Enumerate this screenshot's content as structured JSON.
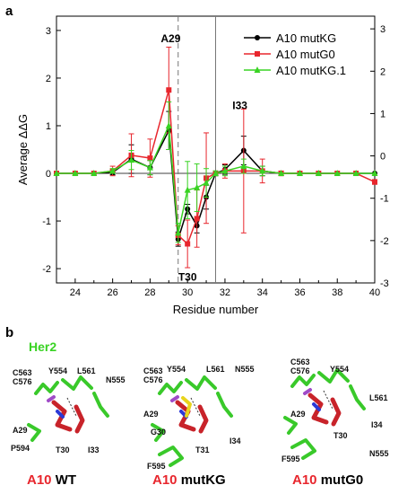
{
  "panel_a_label": "a",
  "panel_b_label": "b",
  "chart_data": {
    "type": "line",
    "ylabel": "Average ΔΔG",
    "xlabel": "Residue number",
    "xlim": [
      23,
      40
    ],
    "ylim": [
      -2.3,
      3.3
    ],
    "right_ylim": [
      -3,
      3.3
    ],
    "xticks": [
      24,
      26,
      28,
      30,
      32,
      34,
      36,
      38,
      40
    ],
    "yticks": [
      -2,
      -1,
      0,
      1,
      2,
      3
    ],
    "right_yticks": [
      -3,
      -2,
      -1,
      0,
      1,
      2,
      3
    ],
    "dashed_vline_x": 29.5,
    "solid_vline_x": 31.5,
    "annotations": [
      {
        "text": "A29",
        "x": 29.1,
        "y": 2.75
      },
      {
        "text": "T30",
        "x": 30.0,
        "y": -2.25
      },
      {
        "text": "I33",
        "x": 32.8,
        "y": 1.35
      }
    ],
    "legend_position": "top-right",
    "series": [
      {
        "name": "A10 mutKG",
        "color": "#000000",
        "marker": "circle",
        "x": [
          23,
          24,
          25,
          26,
          27,
          28,
          29,
          29.5,
          30,
          30.5,
          31,
          31.5,
          32,
          33,
          34,
          35,
          36,
          37,
          38,
          39,
          40
        ],
        "y": [
          0,
          0,
          0,
          0.02,
          0.3,
          0.12,
          0.9,
          -1.38,
          -0.75,
          -1.1,
          -0.5,
          0,
          0.08,
          0.48,
          0.05,
          0,
          0,
          0,
          0,
          0,
          0
        ],
        "err": [
          0,
          0,
          0,
          0.05,
          0.3,
          0.15,
          0.4,
          0.15,
          0.1,
          0.15,
          0.25,
          0.05,
          0.1,
          0.3,
          0.1,
          0,
          0,
          0,
          0,
          0,
          0
        ]
      },
      {
        "name": "A10 mutG0",
        "color": "#e8262d",
        "marker": "square",
        "x": [
          23,
          24,
          25,
          26,
          27,
          28,
          29,
          29.5,
          30,
          30.5,
          31,
          31.5,
          32,
          33,
          34,
          35,
          36,
          37,
          38,
          39,
          40
        ],
        "y": [
          0,
          0,
          0,
          0.05,
          0.38,
          0.32,
          1.75,
          -1.3,
          -1.48,
          -0.95,
          -0.1,
          0,
          0.05,
          0.05,
          0.05,
          0,
          0,
          0,
          0,
          0,
          -0.18
        ],
        "err": [
          0,
          0,
          0,
          0.1,
          0.45,
          0.4,
          0.9,
          0.2,
          0.5,
          0.6,
          0.95,
          0.05,
          0.15,
          1.3,
          0.25,
          0.05,
          0,
          0,
          0,
          0,
          0.05
        ]
      },
      {
        "name": "A10 mutKG.1",
        "color": "#39d323",
        "marker": "triangle",
        "x": [
          23,
          24,
          25,
          26,
          27,
          28,
          29,
          29.5,
          30,
          30.5,
          31,
          31.5,
          32,
          33,
          34,
          35,
          36,
          37,
          38,
          39,
          40
        ],
        "y": [
          0,
          0,
          0,
          0.05,
          0.28,
          0.12,
          1.0,
          -1.25,
          -0.35,
          -0.3,
          -0.2,
          0,
          0.05,
          0.15,
          0.05,
          0,
          0,
          0,
          0,
          0,
          0
        ],
        "err": [
          0,
          0,
          0,
          0.05,
          0.2,
          0.15,
          0.5,
          0.2,
          0.6,
          0.5,
          0.3,
          0.05,
          0.1,
          0.15,
          0.1,
          0,
          0,
          0,
          0,
          0,
          0
        ]
      }
    ]
  },
  "panel_b": {
    "protein_label": "Her2",
    "captions": [
      {
        "prefix": "A10",
        "suffix": " WT"
      },
      {
        "prefix": "A10",
        "suffix": " mutKG"
      },
      {
        "prefix": "A10",
        "suffix": " mutG0"
      }
    ],
    "wt_labels": [
      "C563",
      "C576",
      "Y554",
      "L561",
      "N555",
      "A29",
      "P594",
      "T30",
      "I33"
    ],
    "mutkg_labels": [
      "C563",
      "C576",
      "Y554",
      "L561",
      "N555",
      "A29",
      "G30",
      "T31",
      "I34",
      "F595"
    ],
    "mutg0_labels": [
      "C563",
      "C576",
      "Y554",
      "L561",
      "A29",
      "T30",
      "I34",
      "F595",
      "N555"
    ]
  }
}
